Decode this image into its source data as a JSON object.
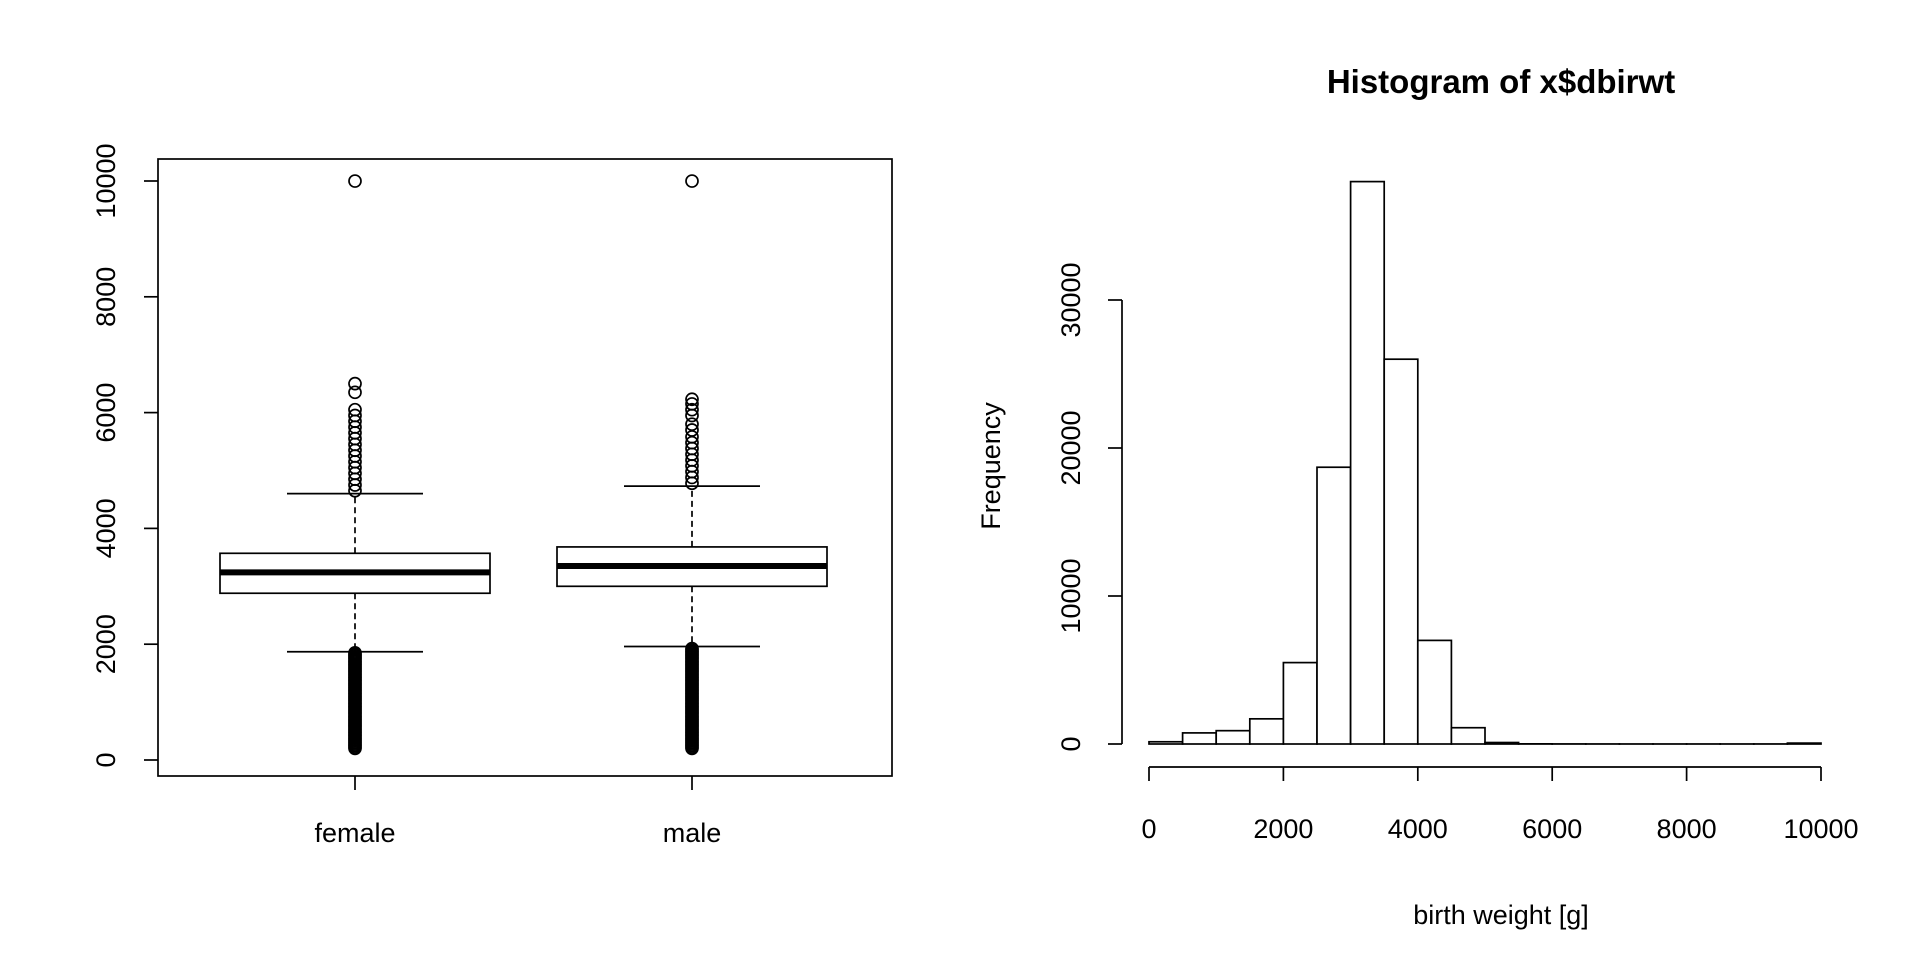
{
  "chart_data": [
    {
      "type": "box",
      "title": "",
      "xlabel": "",
      "ylabel": "",
      "categories": [
        "female",
        "male"
      ],
      "ylim": [
        0,
        10300
      ],
      "y_ticks": [
        0,
        2000,
        4000,
        6000,
        8000,
        10000
      ],
      "y_tick_labels": [
        "0",
        "2000",
        "4000",
        "6000",
        "8000",
        "10000"
      ],
      "boxes": [
        {
          "name": "female",
          "whisker_low": 1870,
          "q1": 2880,
          "median": 3240,
          "q3": 3570,
          "whisker_high": 4600,
          "outliers_high": [
            4650,
            4750,
            4850,
            4950,
            5050,
            5150,
            5250,
            5350,
            5450,
            5550,
            5650,
            5750,
            5850,
            5950,
            6050,
            6350,
            6500,
            9999
          ],
          "outliers_low_range": [
            200,
            1850
          ]
        },
        {
          "name": "male",
          "whisker_low": 1960,
          "q1": 3000,
          "median": 3350,
          "q3": 3680,
          "whisker_high": 4730,
          "outliers_high": [
            4780,
            4880,
            4980,
            5080,
            5180,
            5280,
            5380,
            5480,
            5580,
            5700,
            5800,
            5950,
            6050,
            6150,
            6230,
            9999
          ],
          "outliers_low_range": [
            200,
            1940
          ]
        }
      ]
    },
    {
      "type": "histogram",
      "title": "Histogram of x$dbirwt",
      "xlabel": "birth weight [g]",
      "ylabel": "Frequency",
      "xlim": [
        0,
        10000
      ],
      "ylim": [
        0,
        38500
      ],
      "x_ticks": [
        0,
        2000,
        4000,
        6000,
        8000,
        10000
      ],
      "x_tick_labels": [
        "0",
        "2000",
        "4000",
        "6000",
        "8000",
        "10000"
      ],
      "y_ticks": [
        0,
        10000,
        20000,
        30000
      ],
      "y_tick_labels": [
        "0",
        "10000",
        "20000",
        "30000"
      ],
      "bin_width": 500,
      "bin_starts": [
        0,
        500,
        1000,
        1500,
        2000,
        2500,
        3000,
        3500,
        4000,
        4500,
        5000,
        5500,
        6000,
        6500,
        7000,
        7500,
        8000,
        8500,
        9000,
        9500
      ],
      "counts": [
        150,
        750,
        900,
        1700,
        5500,
        18700,
        38000,
        26000,
        7000,
        1100,
        100,
        10,
        5,
        3,
        2,
        2,
        2,
        2,
        3,
        60
      ]
    }
  ]
}
